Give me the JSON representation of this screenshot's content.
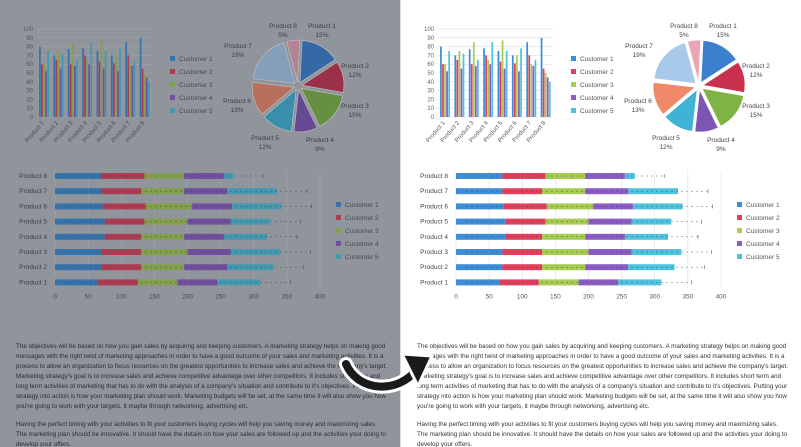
{
  "bar_chart": {
    "y_ticks": [
      "0",
      "10",
      "20",
      "30",
      "40",
      "50",
      "60",
      "70",
      "80",
      "90",
      "100"
    ],
    "categories": [
      "Product 1",
      "Product 2",
      "Product 3",
      "Product 4",
      "Product 5",
      "Product 6",
      "Product 7",
      "Product 8"
    ]
  },
  "pie_chart": {
    "labels": [
      {
        "name": "Product 1",
        "pct": "15%"
      },
      {
        "name": "Product 2",
        "pct": "12%"
      },
      {
        "name": "Product 3",
        "pct": "15%"
      },
      {
        "name": "Product 4",
        "pct": "9%"
      },
      {
        "name": "Product 5",
        "pct": "12%"
      },
      {
        "name": "Product 6",
        "pct": "13%"
      },
      {
        "name": "Product 7",
        "pct": "19%"
      },
      {
        "name": "Product 8",
        "pct": "5%"
      }
    ]
  },
  "hbar_chart": {
    "x_ticks": [
      "0",
      "50",
      "100",
      "150",
      "200",
      "250",
      "300",
      "350",
      "400"
    ],
    "categories": [
      "Product 8",
      "Product 7",
      "Product 6",
      "Product 5",
      "Product 4",
      "Product 3",
      "Product 2",
      "Product 1"
    ]
  },
  "legend": [
    "Customer 1",
    "Customer 2",
    "Customer 3",
    "Customer 4",
    "Customer 5"
  ],
  "colors": {
    "c1": "#3d8ed6",
    "c2": "#e0405d",
    "c3": "#a6cc52",
    "c4": "#8b5cc4",
    "c5": "#4fc3dd",
    "pie": [
      "#3d7fcf",
      "#c8324e",
      "#7fb445",
      "#7d55b3",
      "#3fb3d6",
      "#f0896a",
      "#a9c9ea",
      "#e8a5b6"
    ]
  },
  "text": {
    "p1": "The objectives will be based on how you gain sales by acquiring and keeping customers. A marketing strategy helps on making good messages with the right twist of marketing approaches in order to have a good outcome of your sales and marketing activities. It is a process to allow an organization to focus resources on the greatest opportunities to increase sales and achieve the company's target. Marketing strategy's goal is to increase sales and achieve competitive advantage over other competitors. It includes short term and long term activities of marketing that has to do with the analysis of a company's situation and contribute to it's objectives. Putting your strategy into action is how your marketing plan should work. Marketing budgets will be set, at the same time it will also show you how you're going to work with your targets, it maybe through networking, advertising etc.",
    "p2": "Having the perfect timing with your activities to fit your customers buying cycles will help you saving money and maximizing sales. The marketing plan should be innovative. It should have the details on how your sales are followed up and the activities your doing to develop your offers."
  },
  "chart_data": [
    {
      "type": "bar",
      "categories": [
        "Product 1",
        "Product 2",
        "Product 3",
        "Product 4",
        "Product 5",
        "Product 6",
        "Product 7",
        "Product 8"
      ],
      "ylim": [
        0,
        100
      ],
      "series": [
        {
          "name": "Customer 1",
          "values": [
            80,
            70,
            77,
            78,
            75,
            70,
            85,
            90
          ]
        },
        {
          "name": "Customer 2",
          "values": [
            60,
            65,
            60,
            70,
            63,
            61,
            70,
            55
          ]
        },
        {
          "name": "Customer 3",
          "values": [
            60,
            75,
            85,
            65,
            87,
            70,
            60,
            50
          ]
        },
        {
          "name": "Customer 4",
          "values": [
            52,
            55,
            58,
            60,
            55,
            52,
            58,
            45
          ]
        },
        {
          "name": "Customer 5",
          "values": [
            75,
            72,
            65,
            85,
            75,
            78,
            65,
            40
          ]
        }
      ]
    },
    {
      "type": "pie",
      "categories": [
        "Product 1",
        "Product 2",
        "Product 3",
        "Product 4",
        "Product 5",
        "Product 6",
        "Product 7",
        "Product 8"
      ],
      "values": [
        15,
        12,
        15,
        9,
        12,
        13,
        19,
        5
      ]
    },
    {
      "type": "bar",
      "orientation": "horizontal",
      "stacked": true,
      "categories": [
        "Product 1",
        "Product 2",
        "Product 3",
        "Product 4",
        "Product 5",
        "Product 6",
        "Product 7",
        "Product 8"
      ],
      "xlim": [
        0,
        400
      ],
      "series": [
        {
          "name": "Customer 1",
          "values": [
            65,
            70,
            70,
            75,
            75,
            72,
            70,
            70
          ]
        },
        {
          "name": "Customer 2",
          "values": [
            60,
            60,
            60,
            55,
            60,
            65,
            60,
            65
          ]
        },
        {
          "name": "Customer 3",
          "values": [
            60,
            65,
            70,
            65,
            65,
            70,
            65,
            60
          ]
        },
        {
          "name": "Customer 4",
          "values": [
            60,
            65,
            65,
            60,
            65,
            60,
            65,
            60
          ]
        },
        {
          "name": "Customer 5",
          "values": [
            65,
            70,
            75,
            65,
            60,
            75,
            75,
            15
          ]
        }
      ]
    }
  ]
}
